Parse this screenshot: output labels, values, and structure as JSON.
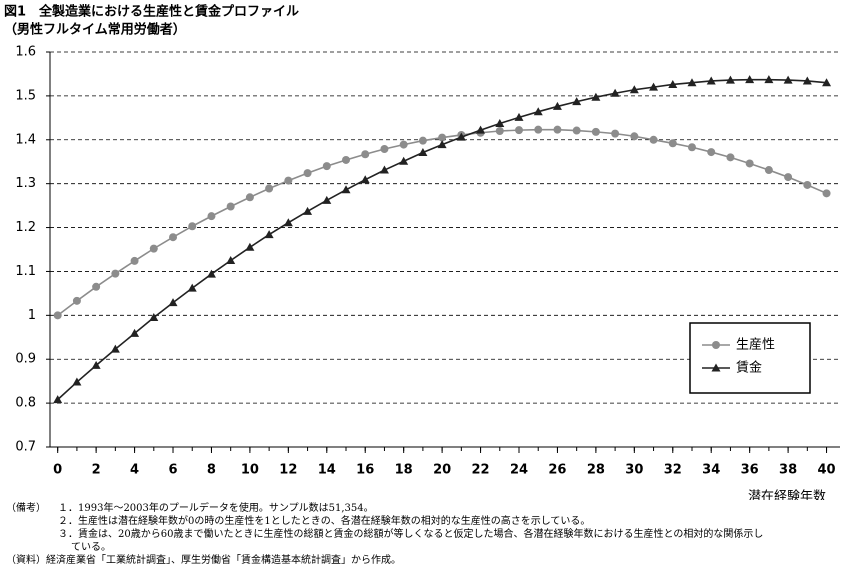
{
  "chart_data": {
    "type": "line",
    "title": "図1　全製造業における生産性と賃金プロファイル",
    "subtitle": "（男性フルタイム常用労働者）",
    "x_label": "潜在経験年数",
    "x": [
      0,
      1,
      2,
      3,
      4,
      5,
      6,
      7,
      8,
      9,
      10,
      11,
      12,
      13,
      14,
      15,
      16,
      17,
      18,
      19,
      20,
      21,
      22,
      23,
      24,
      25,
      26,
      27,
      28,
      29,
      30,
      31,
      32,
      33,
      34,
      35,
      36,
      37,
      38,
      39,
      40
    ],
    "series": [
      {
        "name": "生産性",
        "color": "#8c8c8c",
        "marker": "circle",
        "values": [
          1.0,
          1.033,
          1.065,
          1.095,
          1.124,
          1.152,
          1.178,
          1.203,
          1.226,
          1.248,
          1.269,
          1.289,
          1.307,
          1.324,
          1.34,
          1.354,
          1.367,
          1.379,
          1.389,
          1.398,
          1.405,
          1.411,
          1.416,
          1.42,
          1.422,
          1.423,
          1.423,
          1.421,
          1.418,
          1.414,
          1.408,
          1.4,
          1.392,
          1.383,
          1.372,
          1.36,
          1.346,
          1.331,
          1.315,
          1.297,
          1.278
        ]
      },
      {
        "name": "賃金",
        "color": "#222222",
        "marker": "triangle",
        "values": [
          0.808,
          0.848,
          0.886,
          0.923,
          0.959,
          0.995,
          1.029,
          1.062,
          1.094,
          1.125,
          1.155,
          1.184,
          1.211,
          1.237,
          1.262,
          1.286,
          1.309,
          1.331,
          1.351,
          1.371,
          1.389,
          1.406,
          1.422,
          1.437,
          1.451,
          1.464,
          1.476,
          1.487,
          1.497,
          1.506,
          1.514,
          1.52,
          1.526,
          1.53,
          1.534,
          1.536,
          1.537,
          1.537,
          1.536,
          1.534,
          1.53
        ]
      }
    ],
    "xlim": [
      -0.4,
      40.7
    ],
    "xticks": [
      0,
      2,
      4,
      6,
      8,
      10,
      12,
      14,
      16,
      18,
      20,
      22,
      24,
      26,
      28,
      30,
      32,
      34,
      36,
      38,
      40
    ],
    "ylim": [
      0.7,
      1.6
    ],
    "yticks": [
      0.7,
      0.8,
      0.9,
      1,
      1.1,
      1.2,
      1.3,
      1.4,
      1.5,
      1.6
    ],
    "grid": true,
    "legend": "right",
    "notes": {
      "label": "（備考）",
      "items": [
        "１．1993年～2003年のプールデータを使用。サンプル数は51,354。",
        "２．生産性は潜在経験年数が0の時の生産性を1としたときの、各潜在経験年数の相対的な生産性の高さを示している。",
        "３．賃金は、20歳から60歳まで働いたときに生産性の総額と賃金の総額が等しくなると仮定した場合、各潜在経験年数における生産性との相対的な関係示している。"
      ]
    },
    "source": {
      "label": "（資料）",
      "text": "経済産業省「工業統計調査」、厚生労働省「賃金構造基本統計調査」から作成。"
    }
  }
}
